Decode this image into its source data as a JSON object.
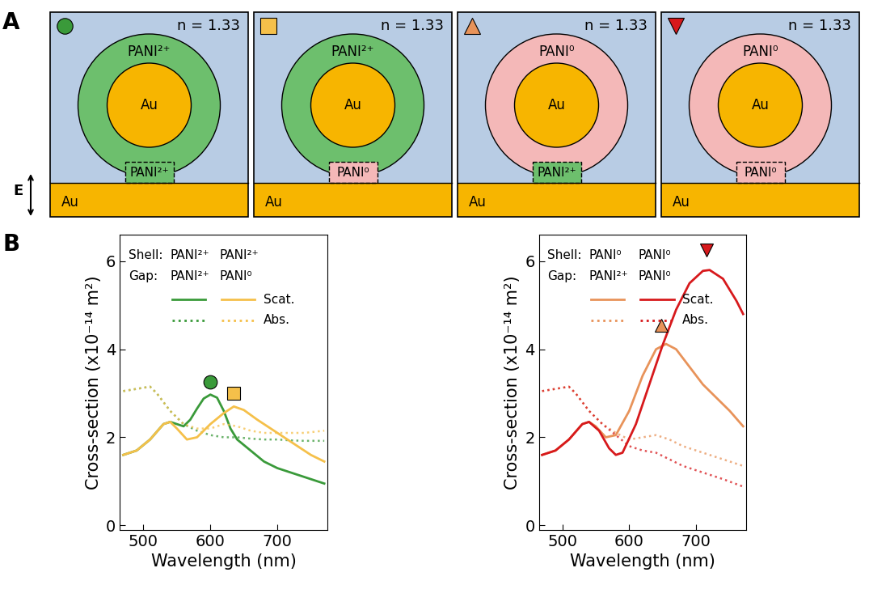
{
  "diagram": {
    "label": "A",
    "field_label": "E",
    "state_colors": {
      "PANI²⁺": "#6dbf6d",
      "PANI⁰": "#f4b8b8"
    },
    "medium_color": "#b8cce4",
    "gold_color": "#f7b500",
    "boxes": [
      {
        "marker": "circle",
        "marker_color": "#3a9a3a",
        "medium": "n = 1.33",
        "core": "Au",
        "substrate": "Au",
        "shell": "PANI²⁺",
        "gap": "PANI²⁺"
      },
      {
        "marker": "square",
        "marker_color": "#f5c04a",
        "medium": "n = 1.33",
        "core": "Au",
        "substrate": "Au",
        "shell": "PANI²⁺",
        "gap": "PANI⁰"
      },
      {
        "marker": "triangle_up",
        "marker_color": "#e8935a",
        "medium": "n = 1.33",
        "core": "Au",
        "substrate": "Au",
        "shell": "PANI⁰",
        "gap": "PANI²⁺"
      },
      {
        "marker": "triangle_down",
        "marker_color": "#d7191c",
        "medium": "n = 1.33",
        "core": "Au",
        "substrate": "Au",
        "shell": "PANI⁰",
        "gap": "PANI⁰"
      }
    ]
  },
  "chart_label": "B",
  "chart_data": [
    {
      "type": "line",
      "x_label": "Wavelength (nm)",
      "y_label": "Cross-section (x10⁻¹⁴ m²)",
      "xlim": [
        465,
        775
      ],
      "xticks": [
        500,
        600,
        700
      ],
      "ylim": [
        -0.1,
        6.6
      ],
      "yticks": [
        0,
        2,
        4,
        6
      ],
      "legend_table": {
        "shell_label": "Shell:",
        "gap_label": "Gap:",
        "kinds": [
          {
            "name": "Scat.",
            "line_style": "solid"
          },
          {
            "name": "Abs.",
            "line_style": "dotted"
          }
        ]
      },
      "series": [
        {
          "shell": "PANI²⁺",
          "gap": "PANI²⁺",
          "kind": "Scat.",
          "color": "#3a9a3a",
          "line_style": "solid",
          "x": [
            470,
            490,
            510,
            530,
            540,
            550,
            560,
            570,
            580,
            590,
            600,
            610,
            620,
            630,
            640,
            660,
            680,
            700,
            720,
            740,
            760,
            770
          ],
          "values": [
            1.6,
            1.7,
            1.95,
            2.3,
            2.35,
            2.3,
            2.25,
            2.4,
            2.65,
            2.88,
            2.97,
            2.9,
            2.6,
            2.2,
            1.95,
            1.7,
            1.45,
            1.3,
            1.2,
            1.1,
            1.0,
            0.95
          ]
        },
        {
          "shell": "PANI²⁺",
          "gap": "PANI²⁺",
          "kind": "Abs.",
          "color": "#3a9a3a",
          "line_style": "dotted",
          "x": [
            470,
            490,
            510,
            520,
            540,
            560,
            580,
            600,
            620,
            640,
            660,
            680,
            700,
            720,
            740,
            770
          ],
          "values": [
            3.05,
            3.1,
            3.15,
            3.0,
            2.6,
            2.3,
            2.15,
            2.05,
            2.0,
            2.0,
            1.97,
            1.95,
            1.95,
            1.93,
            1.92,
            1.92
          ]
        },
        {
          "shell": "PANI²⁺",
          "gap": "PANI⁰",
          "kind": "Scat.",
          "color": "#f5c04a",
          "line_style": "solid",
          "x": [
            470,
            490,
            510,
            530,
            540,
            550,
            565,
            580,
            600,
            620,
            635,
            650,
            670,
            690,
            710,
            730,
            750,
            770
          ],
          "values": [
            1.6,
            1.7,
            1.95,
            2.3,
            2.35,
            2.2,
            1.95,
            2.0,
            2.3,
            2.55,
            2.7,
            2.62,
            2.4,
            2.2,
            2.0,
            1.8,
            1.6,
            1.45
          ]
        },
        {
          "shell": "PANI²⁺",
          "gap": "PANI⁰",
          "kind": "Abs.",
          "color": "#f5c04a",
          "line_style": "dotted",
          "x": [
            470,
            490,
            510,
            520,
            540,
            560,
            580,
            600,
            620,
            640,
            660,
            680,
            700,
            720,
            740,
            770
          ],
          "values": [
            3.05,
            3.1,
            3.15,
            3.0,
            2.6,
            2.3,
            2.2,
            2.2,
            2.3,
            2.25,
            2.15,
            2.1,
            2.1,
            2.1,
            2.1,
            2.15
          ]
        }
      ],
      "peaks": [
        {
          "x": 600,
          "y": 3.25,
          "marker": "circle",
          "color": "#3a9a3a"
        },
        {
          "x": 635,
          "y": 3.0,
          "marker": "square",
          "color": "#f5c04a"
        }
      ]
    },
    {
      "type": "line",
      "x_label": "Wavelength (nm)",
      "y_label": "Cross-section (x10⁻¹⁴ m²)",
      "xlim": [
        465,
        775
      ],
      "xticks": [
        500,
        600,
        700
      ],
      "ylim": [
        -0.1,
        6.6
      ],
      "yticks": [
        0,
        2,
        4,
        6
      ],
      "legend_table": {
        "shell_label": "Shell:",
        "gap_label": "Gap:",
        "kinds": [
          {
            "name": "Scat.",
            "line_style": "solid"
          },
          {
            "name": "Abs.",
            "line_style": "dotted"
          }
        ]
      },
      "series": [
        {
          "shell": "PANI⁰",
          "gap": "PANI²⁺",
          "kind": "Scat.",
          "color": "#e8935a",
          "line_style": "solid",
          "x": [
            470,
            490,
            510,
            530,
            540,
            550,
            565,
            580,
            600,
            620,
            640,
            655,
            670,
            690,
            710,
            730,
            750,
            770
          ],
          "values": [
            1.6,
            1.7,
            1.95,
            2.3,
            2.35,
            2.25,
            2.0,
            2.05,
            2.6,
            3.4,
            4.0,
            4.12,
            4.0,
            3.6,
            3.2,
            2.9,
            2.6,
            2.25
          ]
        },
        {
          "shell": "PANI⁰",
          "gap": "PANI²⁺",
          "kind": "Abs.",
          "color": "#e8935a",
          "line_style": "dotted",
          "x": [
            470,
            490,
            510,
            520,
            540,
            560,
            580,
            600,
            620,
            640,
            660,
            680,
            700,
            720,
            740,
            770
          ],
          "values": [
            3.05,
            3.1,
            3.15,
            3.0,
            2.6,
            2.3,
            2.1,
            1.95,
            2.0,
            2.05,
            1.95,
            1.8,
            1.7,
            1.6,
            1.5,
            1.35
          ]
        },
        {
          "shell": "PANI⁰",
          "gap": "PANI⁰",
          "kind": "Scat.",
          "color": "#d7191c",
          "line_style": "solid",
          "x": [
            470,
            490,
            510,
            530,
            540,
            555,
            570,
            580,
            590,
            610,
            630,
            650,
            670,
            690,
            710,
            720,
            740,
            760,
            770
          ],
          "values": [
            1.6,
            1.7,
            1.95,
            2.3,
            2.35,
            2.15,
            1.75,
            1.6,
            1.65,
            2.3,
            3.2,
            4.1,
            4.9,
            5.5,
            5.78,
            5.8,
            5.6,
            5.1,
            4.8
          ]
        },
        {
          "shell": "PANI⁰",
          "gap": "PANI⁰",
          "kind": "Abs.",
          "color": "#d7191c",
          "line_style": "dotted",
          "x": [
            470,
            490,
            510,
            520,
            540,
            560,
            580,
            600,
            620,
            640,
            660,
            680,
            700,
            720,
            740,
            770
          ],
          "values": [
            3.05,
            3.1,
            3.15,
            3.0,
            2.6,
            2.3,
            2.05,
            1.8,
            1.7,
            1.65,
            1.5,
            1.35,
            1.25,
            1.15,
            1.05,
            0.88
          ]
        }
      ],
      "peaks": [
        {
          "x": 648,
          "y": 4.55,
          "marker": "triangle_up",
          "color": "#e8935a"
        },
        {
          "x": 715,
          "y": 6.25,
          "marker": "triangle_down",
          "color": "#d7191c"
        }
      ]
    }
  ]
}
